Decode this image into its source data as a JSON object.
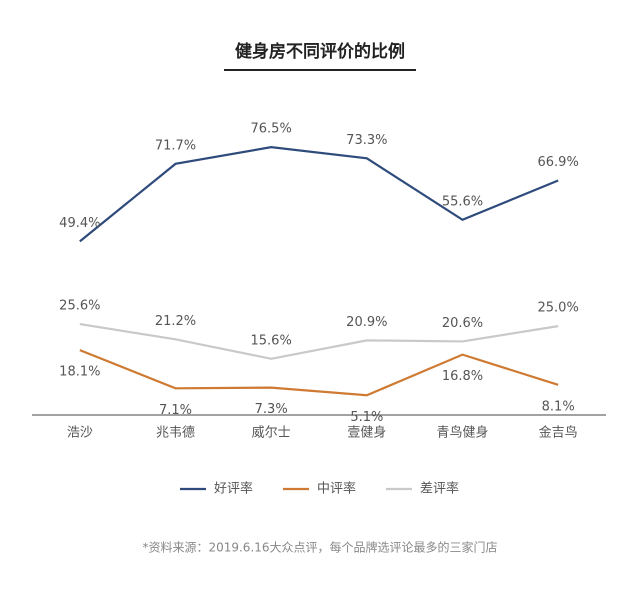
{
  "chart_data": {
    "type": "line",
    "title": "健身房不同评价的比例",
    "categories": [
      "浩沙",
      "兆韦德",
      "威尔士",
      "壹健身",
      "青鸟健身",
      "金吉鸟"
    ],
    "series": [
      {
        "name": "好评率",
        "color": "#2f4b7c",
        "values": [
          49.4,
          71.7,
          76.5,
          73.3,
          55.6,
          66.9
        ],
        "value_labels": [
          "49.4%",
          "71.7%",
          "76.5%",
          "73.3%",
          "55.6%",
          "66.9%"
        ]
      },
      {
        "name": "中评率",
        "color": "#cf7a32",
        "values": [
          18.1,
          7.1,
          7.3,
          5.1,
          16.8,
          8.1
        ],
        "value_labels": [
          "18.1%",
          "7.1%",
          "7.3%",
          "5.1%",
          "16.8%",
          "8.1%"
        ]
      },
      {
        "name": "差评率",
        "color": "#c9c9c9",
        "values": [
          25.6,
          21.2,
          15.6,
          20.9,
          20.6,
          25.0
        ],
        "value_labels": [
          "25.6%",
          "21.2%",
          "15.6%",
          "20.9%",
          "20.6%",
          "25.0%"
        ]
      }
    ],
    "ylim": [
      0,
      80
    ],
    "note": "*资料来源：2019.6.16大众点评，每个品牌选评论最多的三家门店"
  }
}
